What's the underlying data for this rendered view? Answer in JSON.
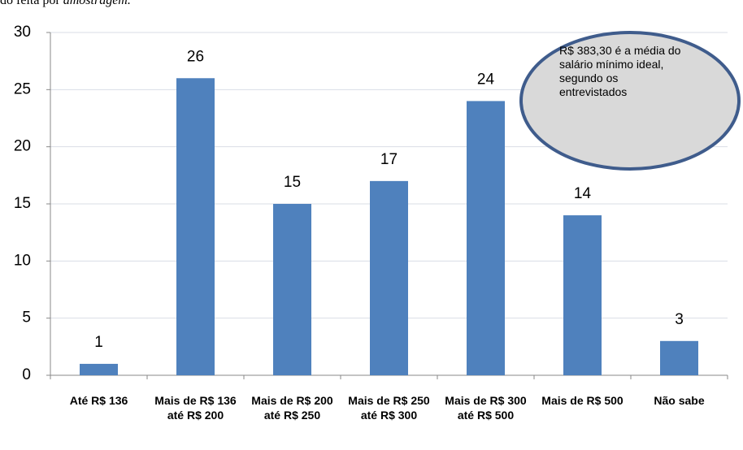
{
  "caption": {
    "plain": "do feita por",
    "italic": "amostragem."
  },
  "chart_data": {
    "type": "bar",
    "categories": [
      "Até R$ 136",
      "Mais de R$ 136 até R$ 200",
      "Mais de R$ 200 até R$ 250",
      "Mais de R$ 250 até R$ 300",
      "Mais de R$ 300 até R$ 500",
      "Mais de R$ 500",
      "Não sabe"
    ],
    "values": [
      1,
      26,
      15,
      17,
      24,
      14,
      3
    ],
    "color": "#4f81bd",
    "ylim": [
      0,
      30
    ],
    "yticks": [
      0,
      5,
      10,
      15,
      20,
      25,
      30
    ],
    "grid": true,
    "annotation": "R$ 383,30 é a média do salário mínimo ideal, segundo os entrevistados"
  }
}
